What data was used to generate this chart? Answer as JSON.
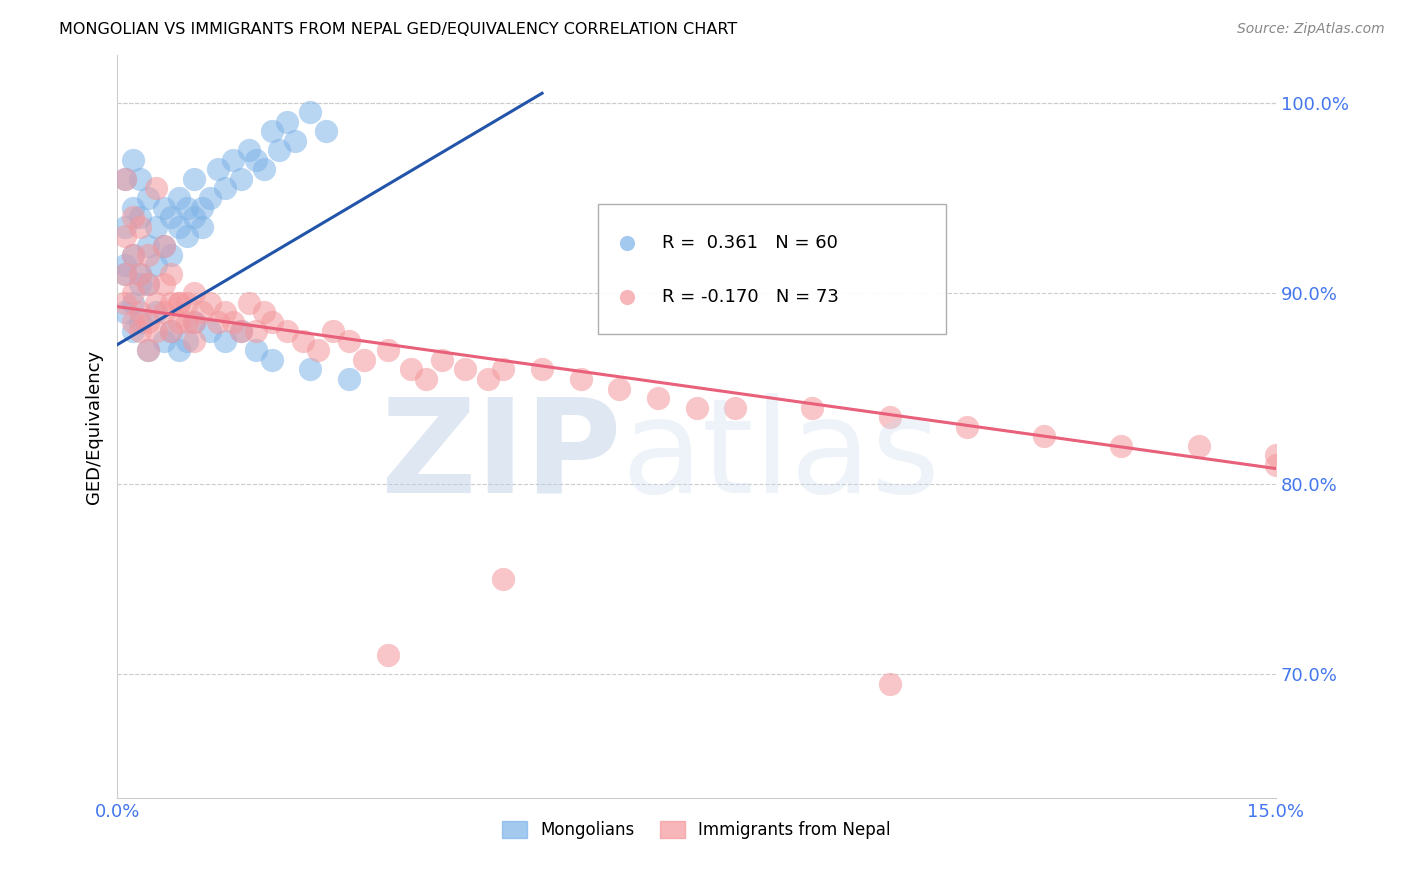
{
  "title": "MONGOLIAN VS IMMIGRANTS FROM NEPAL GED/EQUIVALENCY CORRELATION CHART",
  "source": "Source: ZipAtlas.com",
  "ylabel": "GED/Equivalency",
  "xlim": [
    0.0,
    0.15
  ],
  "ylim": [
    0.635,
    1.025
  ],
  "yticks": [
    0.7,
    0.8,
    0.9,
    1.0
  ],
  "ytick_labels": [
    "70.0%",
    "80.0%",
    "90.0%",
    "100.0%"
  ],
  "xticks": [
    0.0,
    0.05,
    0.1,
    0.15
  ],
  "xtick_labels": [
    "0.0%",
    "",
    "",
    "15.0%"
  ],
  "legend_blue_r": "0.361",
  "legend_blue_n": "60",
  "legend_pink_r": "-0.170",
  "legend_pink_n": "73",
  "legend_label_blue": "Mongolians",
  "legend_label_pink": "Immigrants from Nepal",
  "blue_color": "#7EB3E8",
  "pink_color": "#F4979C",
  "blue_line_color": "#2255AA",
  "pink_line_color": "#E8607A",
  "axis_color": "#4477EE",
  "grid_color": "#CCCCCC",
  "blue_x": [
    0.001,
    0.001,
    0.001,
    0.002,
    0.002,
    0.002,
    0.003,
    0.003,
    0.003,
    0.004,
    0.004,
    0.004,
    0.005,
    0.005,
    0.006,
    0.006,
    0.007,
    0.007,
    0.008,
    0.008,
    0.009,
    0.009,
    0.01,
    0.01,
    0.011,
    0.011,
    0.012,
    0.013,
    0.014,
    0.015,
    0.016,
    0.017,
    0.018,
    0.019,
    0.02,
    0.021,
    0.022,
    0.023,
    0.025,
    0.027,
    0.001,
    0.001,
    0.002,
    0.002,
    0.003,
    0.003,
    0.004,
    0.005,
    0.006,
    0.007,
    0.008,
    0.009,
    0.01,
    0.012,
    0.014,
    0.016,
    0.018,
    0.02,
    0.025,
    0.03
  ],
  "blue_y": [
    0.935,
    0.96,
    0.915,
    0.945,
    0.97,
    0.92,
    0.94,
    0.96,
    0.91,
    0.925,
    0.95,
    0.905,
    0.935,
    0.915,
    0.945,
    0.925,
    0.94,
    0.92,
    0.935,
    0.95,
    0.945,
    0.93,
    0.94,
    0.96,
    0.935,
    0.945,
    0.95,
    0.965,
    0.955,
    0.97,
    0.96,
    0.975,
    0.97,
    0.965,
    0.985,
    0.975,
    0.99,
    0.98,
    0.995,
    0.985,
    0.89,
    0.91,
    0.895,
    0.88,
    0.905,
    0.885,
    0.87,
    0.89,
    0.875,
    0.88,
    0.87,
    0.875,
    0.885,
    0.88,
    0.875,
    0.88,
    0.87,
    0.865,
    0.86,
    0.855
  ],
  "pink_x": [
    0.001,
    0.001,
    0.001,
    0.002,
    0.002,
    0.002,
    0.003,
    0.003,
    0.003,
    0.004,
    0.004,
    0.004,
    0.005,
    0.005,
    0.006,
    0.006,
    0.007,
    0.007,
    0.008,
    0.008,
    0.009,
    0.01,
    0.01,
    0.011,
    0.012,
    0.013,
    0.014,
    0.015,
    0.016,
    0.017,
    0.018,
    0.019,
    0.02,
    0.022,
    0.024,
    0.026,
    0.028,
    0.03,
    0.032,
    0.035,
    0.038,
    0.04,
    0.042,
    0.045,
    0.048,
    0.05,
    0.055,
    0.06,
    0.065,
    0.07,
    0.075,
    0.08,
    0.09,
    0.1,
    0.11,
    0.12,
    0.13,
    0.14,
    0.15,
    0.15,
    0.001,
    0.002,
    0.003,
    0.004,
    0.005,
    0.006,
    0.007,
    0.008,
    0.009,
    0.01,
    0.035,
    0.05,
    0.1
  ],
  "pink_y": [
    0.91,
    0.93,
    0.895,
    0.92,
    0.9,
    0.885,
    0.91,
    0.89,
    0.88,
    0.905,
    0.885,
    0.87,
    0.895,
    0.88,
    0.905,
    0.89,
    0.895,
    0.88,
    0.895,
    0.885,
    0.895,
    0.9,
    0.885,
    0.89,
    0.895,
    0.885,
    0.89,
    0.885,
    0.88,
    0.895,
    0.88,
    0.89,
    0.885,
    0.88,
    0.875,
    0.87,
    0.88,
    0.875,
    0.865,
    0.87,
    0.86,
    0.855,
    0.865,
    0.86,
    0.855,
    0.86,
    0.86,
    0.855,
    0.85,
    0.845,
    0.84,
    0.84,
    0.84,
    0.835,
    0.83,
    0.825,
    0.82,
    0.82,
    0.815,
    0.81,
    0.96,
    0.94,
    0.935,
    0.92,
    0.955,
    0.925,
    0.91,
    0.895,
    0.885,
    0.875,
    0.71,
    0.75,
    0.695
  ],
  "blue_trend_x": [
    0.0,
    0.055
  ],
  "blue_trend_y": [
    0.873,
    1.005
  ],
  "pink_trend_x": [
    0.0,
    0.15
  ],
  "pink_trend_y": [
    0.893,
    0.808
  ]
}
